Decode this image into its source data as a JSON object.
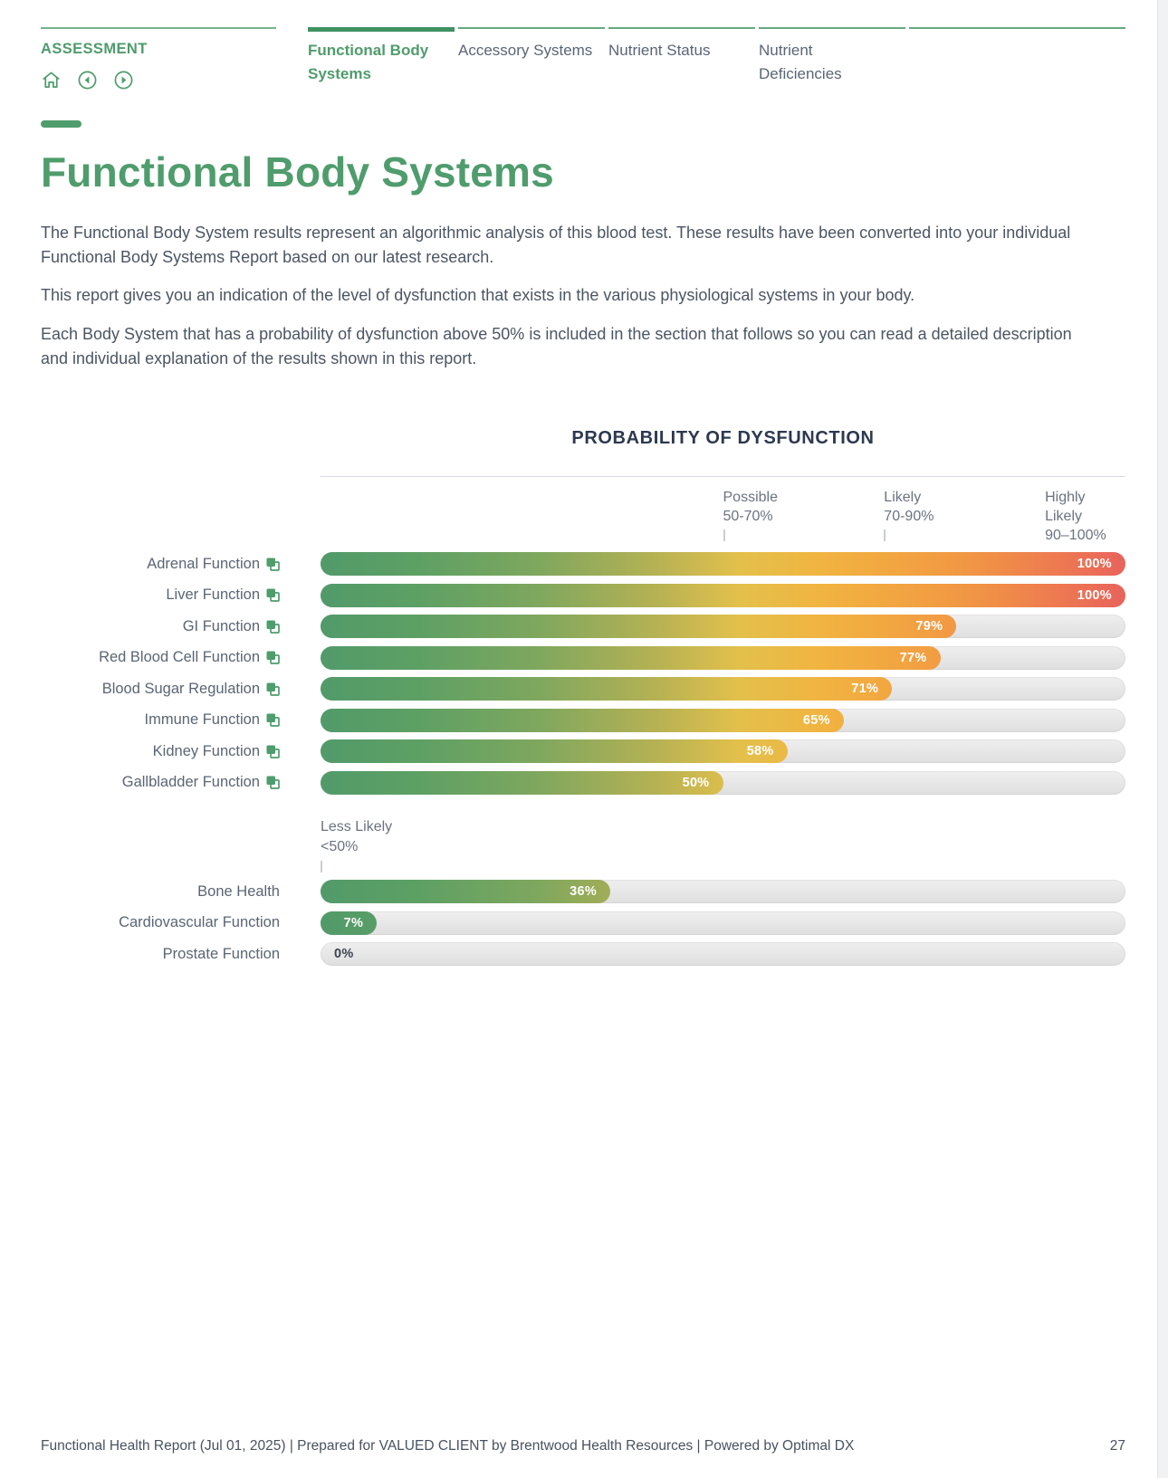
{
  "header": {
    "section_label": "ASSESSMENT",
    "tabs": [
      {
        "label": "Functional Body Systems",
        "active": true
      },
      {
        "label": "Accessory Systems",
        "active": false
      },
      {
        "label": "Nutrient Status",
        "active": false
      },
      {
        "label": "Nutrient Deficiencies",
        "active": false
      }
    ]
  },
  "page": {
    "title": "Functional Body Systems",
    "paragraphs": [
      "The Functional Body System results represent an algorithmic analysis of this blood test. These results have been converted into your individual Functional Body Systems Report based on our latest research.",
      "This report gives you an indication of the level of dysfunction that exists in the various physiological systems in your body.",
      "Each Body System that has a probability of dysfunction above 50% is included in the section that follows so you can read a detailed description and individual explanation of the results shown in this report."
    ]
  },
  "chart_data": {
    "type": "bar",
    "orientation": "horizontal",
    "title": "PROBABILITY OF DYSFUNCTION",
    "unit": "%",
    "xlim": [
      0,
      100
    ],
    "range_markers": [
      {
        "label": "Possible",
        "range": "50-70%",
        "at": 50
      },
      {
        "label": "Likely",
        "range": "70-90%",
        "at": 70
      },
      {
        "label": "Highly Likely",
        "range": "90–100%",
        "at": 90
      }
    ],
    "below_threshold_marker": {
      "label": "Less Likely",
      "range": "<50%",
      "at": 0
    },
    "groups": [
      {
        "items": [
          {
            "label": "Adrenal Function",
            "value": 100,
            "has_link_icon": true
          },
          {
            "label": "Liver Function",
            "value": 100,
            "has_link_icon": true
          },
          {
            "label": "GI Function",
            "value": 79,
            "has_link_icon": true
          },
          {
            "label": "Red Blood Cell Function",
            "value": 77,
            "has_link_icon": true
          },
          {
            "label": "Blood Sugar Regulation",
            "value": 71,
            "has_link_icon": true
          },
          {
            "label": "Immune Function",
            "value": 65,
            "has_link_icon": true
          },
          {
            "label": "Kidney Function",
            "value": 58,
            "has_link_icon": true
          },
          {
            "label": "Gallbladder Function",
            "value": 50,
            "has_link_icon": true
          }
        ]
      },
      {
        "items": [
          {
            "label": "Bone Health",
            "value": 36,
            "has_link_icon": false
          },
          {
            "label": "Cardiovascular Function",
            "value": 7,
            "has_link_icon": false
          },
          {
            "label": "Prostate Function",
            "value": 0,
            "has_link_icon": false
          }
        ]
      }
    ],
    "colors": {
      "brand_green": "#4f9c6c",
      "chart_title": "#2d3950",
      "track": "#e7e7e8",
      "value_label": "#ffffff",
      "zero_value_label": "#3a4350",
      "gradient": [
        {
          "pos": 0,
          "color": "#529a6b"
        },
        {
          "pos": 12,
          "color": "#5da064"
        },
        {
          "pos": 27,
          "color": "#7fa75e"
        },
        {
          "pos": 41,
          "color": "#b3b154"
        },
        {
          "pos": 52,
          "color": "#e3c04b"
        },
        {
          "pos": 62,
          "color": "#f1b441"
        },
        {
          "pos": 71,
          "color": "#f2a641"
        },
        {
          "pos": 81,
          "color": "#f19544"
        },
        {
          "pos": 91,
          "color": "#ee7b50"
        },
        {
          "pos": 100,
          "color": "#e8635c"
        }
      ]
    }
  },
  "footer": {
    "text": "Functional Health Report (Jul 01, 2025) | Prepared for VALUED CLIENT by Brentwood Health Resources | Powered by Optimal DX",
    "page_number": "27"
  }
}
